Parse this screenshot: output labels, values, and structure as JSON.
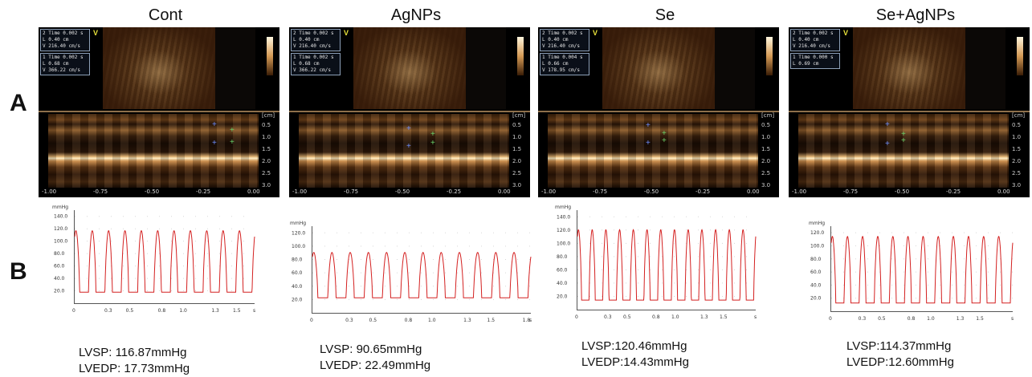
{
  "row_labels": [
    "A",
    "B"
  ],
  "panels": [
    {
      "title": "Cont",
      "echo": {
        "info_boxes": [
          {
            "index": "2",
            "time": "0.002 s",
            "l": "0.40 cm",
            "v": "216.40 cm/s"
          },
          {
            "index": "1",
            "time": "0.002 s",
            "l": "0.68 cm",
            "v": "366.22 cm/s"
          }
        ]
      },
      "pressure": {
        "peak": 116.87,
        "min": 17.73,
        "duration": 1.68,
        "beats": 11
      },
      "lvsp": "LVSP: 116.87mmHg",
      "lvedp": "LVEDP: 17.73mmHg"
    },
    {
      "title": "AgNPs",
      "echo": {
        "info_boxes": [
          {
            "index": "2",
            "time": "0.002 s",
            "l": "0.40 cm",
            "v": "216.40 cm/s"
          },
          {
            "index": "1",
            "time": "0.002 s",
            "l": "0.68 cm",
            "v": "366.22 cm/s"
          }
        ]
      },
      "pressure": {
        "peak": 90.65,
        "min": 22.49,
        "duration": 1.85,
        "beats": 12
      },
      "lvsp": "LVSP: 90.65mmHg",
      "lvedp": "LVEDP: 22.49mmHg"
    },
    {
      "title": "Se",
      "echo": {
        "info_boxes": [
          {
            "index": "2",
            "time": "0.002 s",
            "l": "0.40 cm",
            "v": "216.40 cm/s"
          },
          {
            "index": "1",
            "time": "0.004 s",
            "l": "0.66 cm",
            "v": "178.95 cm/s"
          }
        ]
      },
      "pressure": {
        "peak": 120.46,
        "min": 14.43,
        "duration": 1.85,
        "beats": 13
      },
      "lvsp": "LVSP:120.46mmHg",
      "lvedp": "LVEDP:14.43mmHg"
    },
    {
      "title": "Se+AgNPs",
      "echo": {
        "info_boxes": [
          {
            "index": "2",
            "time": "0.002 s",
            "l": "0.40 cm",
            "v": "216.40 cm/s"
          },
          {
            "index": "1",
            "time": "0.000 s",
            "l": "0.69 cm",
            "v": ""
          }
        ]
      },
      "pressure": {
        "peak": 114.37,
        "min": 12.6,
        "duration": 1.85,
        "beats": 12
      },
      "lvsp": "LVSP:114.37mmHg",
      "lvedp": "LVEDP:12.60mmHg"
    }
  ],
  "echo_x_ticks": [
    "-1.00",
    "-0.75",
    "-0.50",
    "-0.25",
    "0.00"
  ],
  "echo_depth_ticks": [
    "0.5",
    "1.0",
    "1.5",
    "2.0",
    "2.5",
    "3.0"
  ],
  "echo_depth_unit": "[cm]",
  "echo_v_label": "V",
  "pressure_unit": "mmHg",
  "pressure_y_ticks_tall": [
    "140.0",
    "120.0",
    "100.0",
    "80.0",
    "60.0",
    "40.0",
    "20.0"
  ],
  "pressure_y_ticks_short": [
    "120.0",
    "100.0",
    "80.0",
    "60.0",
    "40.0",
    "20.0"
  ],
  "pressure_x_ticks": [
    "0",
    "0.3",
    "0.5",
    "0.8",
    "1.0",
    "1.3",
    "1.5"
  ],
  "pressure_x_ticks_long": [
    "0",
    "0.3",
    "0.5",
    "0.8",
    "1.0",
    "1.3",
    "1.5",
    "1.8"
  ],
  "pressure_x_unit": "s",
  "trace_color": "#d42020"
}
